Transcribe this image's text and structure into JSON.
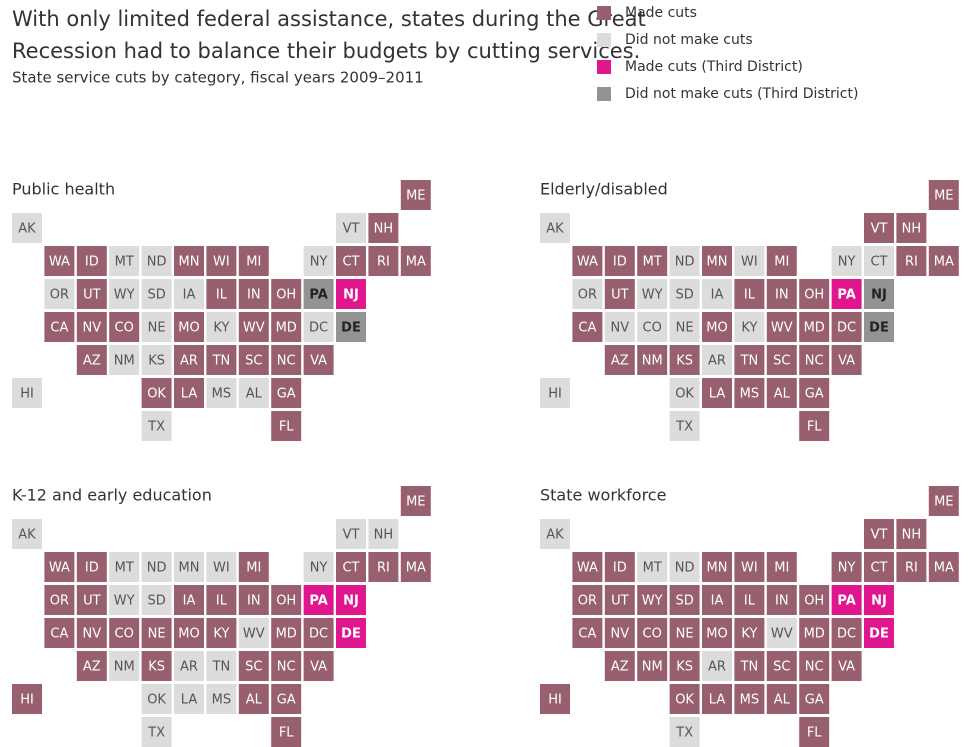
{
  "title_lines": [
    "With only limited federal assistance, states during the Great",
    "Recession had to balance their budgets by cutting services."
  ],
  "subtitle": "State service cuts by category, fiscal years 2009–2011",
  "legend": [
    {
      "name": "Made cuts",
      "color": "#98606f",
      "text_color": "#ffffff",
      "bold": false
    },
    {
      "name": "Did not make cuts",
      "color": "#dcdcdc",
      "text_color": "#555555",
      "bold": false
    },
    {
      "name": "Made cuts (Third District)",
      "color": "#e0178c",
      "text_color": "#ffffff",
      "bold": true
    },
    {
      "name": "Did not make cuts (Third District)",
      "color": "#939393",
      "text_color": "#222222",
      "bold": true
    }
  ],
  "grid": [
    [
      null,
      null,
      null,
      null,
      null,
      null,
      null,
      null,
      null,
      null,
      null,
      null,
      "ME"
    ],
    [
      "AK",
      null,
      null,
      null,
      null,
      null,
      null,
      null,
      null,
      null,
      "VT",
      "NH",
      null
    ],
    [
      null,
      "WA",
      "ID",
      "MT",
      "ND",
      "MN",
      "WI",
      "MI",
      null,
      "NY",
      "CT",
      "RI",
      "MA"
    ],
    [
      null,
      "OR",
      "UT",
      "WY",
      "SD",
      "IA",
      "IL",
      "IN",
      "OH",
      "PA",
      "NJ",
      null,
      null
    ],
    [
      null,
      "CA",
      "NV",
      "CO",
      "NE",
      "MO",
      "KY",
      "WV",
      "MD",
      "DC",
      "DE",
      null,
      null
    ],
    [
      null,
      null,
      "AZ",
      "NM",
      "KS",
      "AR",
      "TN",
      "SC",
      "NC",
      "VA",
      null,
      null,
      null
    ],
    [
      "HI",
      null,
      null,
      null,
      "OK",
      "LA",
      "MS",
      "AL",
      "GA",
      null,
      null,
      null,
      null
    ],
    [
      null,
      null,
      null,
      null,
      "TX",
      null,
      null,
      null,
      "FL",
      null,
      null,
      null,
      null
    ]
  ],
  "panels": [
    {
      "title": "Public health",
      "status": [
        [
          null,
          null,
          null,
          null,
          null,
          null,
          null,
          null,
          null,
          null,
          null,
          null,
          0
        ],
        [
          1,
          null,
          null,
          null,
          null,
          null,
          null,
          null,
          null,
          null,
          1,
          0,
          null
        ],
        [
          null,
          0,
          0,
          1,
          1,
          0,
          0,
          0,
          null,
          1,
          0,
          0,
          0
        ],
        [
          null,
          1,
          0,
          1,
          1,
          1,
          0,
          0,
          0,
          3,
          2,
          null,
          null
        ],
        [
          null,
          0,
          0,
          0,
          1,
          0,
          1,
          0,
          0,
          1,
          3,
          null,
          null
        ],
        [
          null,
          null,
          0,
          1,
          1,
          0,
          0,
          0,
          0,
          0,
          null,
          null,
          null
        ],
        [
          1,
          null,
          null,
          null,
          0,
          0,
          1,
          1,
          0,
          null,
          null,
          null,
          null
        ],
        [
          null,
          null,
          null,
          null,
          1,
          null,
          null,
          null,
          0,
          null,
          null,
          null,
          null
        ]
      ]
    },
    {
      "title": "Elderly/disabled",
      "status": [
        [
          null,
          null,
          null,
          null,
          null,
          null,
          null,
          null,
          null,
          null,
          null,
          null,
          0
        ],
        [
          1,
          null,
          null,
          null,
          null,
          null,
          null,
          null,
          null,
          null,
          0,
          0,
          null
        ],
        [
          null,
          0,
          0,
          0,
          1,
          0,
          1,
          0,
          null,
          1,
          1,
          0,
          0
        ],
        [
          null,
          1,
          0,
          1,
          1,
          1,
          0,
          0,
          0,
          2,
          3,
          null,
          null
        ],
        [
          null,
          0,
          1,
          1,
          1,
          0,
          1,
          0,
          0,
          0,
          3,
          null,
          null
        ],
        [
          null,
          null,
          0,
          0,
          0,
          1,
          0,
          0,
          0,
          0,
          null,
          null,
          null
        ],
        [
          1,
          null,
          null,
          null,
          1,
          0,
          0,
          0,
          0,
          null,
          null,
          null,
          null
        ],
        [
          null,
          null,
          null,
          null,
          1,
          null,
          null,
          null,
          0,
          null,
          null,
          null,
          null
        ]
      ]
    },
    {
      "title": "K-12 and early education",
      "status": [
        [
          null,
          null,
          null,
          null,
          null,
          null,
          null,
          null,
          null,
          null,
          null,
          null,
          0
        ],
        [
          1,
          null,
          null,
          null,
          null,
          null,
          null,
          null,
          null,
          null,
          1,
          1,
          null
        ],
        [
          null,
          0,
          0,
          1,
          1,
          1,
          1,
          0,
          null,
          1,
          0,
          0,
          0
        ],
        [
          null,
          0,
          0,
          1,
          1,
          0,
          0,
          0,
          0,
          2,
          2,
          null,
          null
        ],
        [
          null,
          0,
          0,
          0,
          0,
          0,
          0,
          1,
          0,
          0,
          2,
          null,
          null
        ],
        [
          null,
          null,
          0,
          1,
          0,
          1,
          1,
          0,
          0,
          0,
          null,
          null,
          null
        ],
        [
          0,
          null,
          null,
          null,
          1,
          1,
          1,
          0,
          0,
          null,
          null,
          null,
          null
        ],
        [
          null,
          null,
          null,
          null,
          1,
          null,
          null,
          null,
          0,
          null,
          null,
          null,
          null
        ]
      ]
    },
    {
      "title": "State workforce",
      "status": [
        [
          null,
          null,
          null,
          null,
          null,
          null,
          null,
          null,
          null,
          null,
          null,
          null,
          0
        ],
        [
          1,
          null,
          null,
          null,
          null,
          null,
          null,
          null,
          null,
          null,
          0,
          0,
          null
        ],
        [
          null,
          0,
          0,
          1,
          1,
          0,
          0,
          0,
          null,
          0,
          0,
          0,
          0
        ],
        [
          null,
          0,
          0,
          0,
          0,
          0,
          0,
          0,
          0,
          2,
          2,
          null,
          null
        ],
        [
          null,
          0,
          0,
          0,
          0,
          0,
          0,
          1,
          0,
          0,
          2,
          null,
          null
        ],
        [
          null,
          null,
          0,
          0,
          0,
          1,
          0,
          0,
          0,
          0,
          null,
          null,
          null
        ],
        [
          0,
          null,
          null,
          null,
          0,
          0,
          0,
          0,
          0,
          null,
          null,
          null,
          null
        ],
        [
          null,
          null,
          null,
          null,
          1,
          null,
          null,
          null,
          0,
          null,
          null,
          null,
          null
        ]
      ]
    }
  ]
}
